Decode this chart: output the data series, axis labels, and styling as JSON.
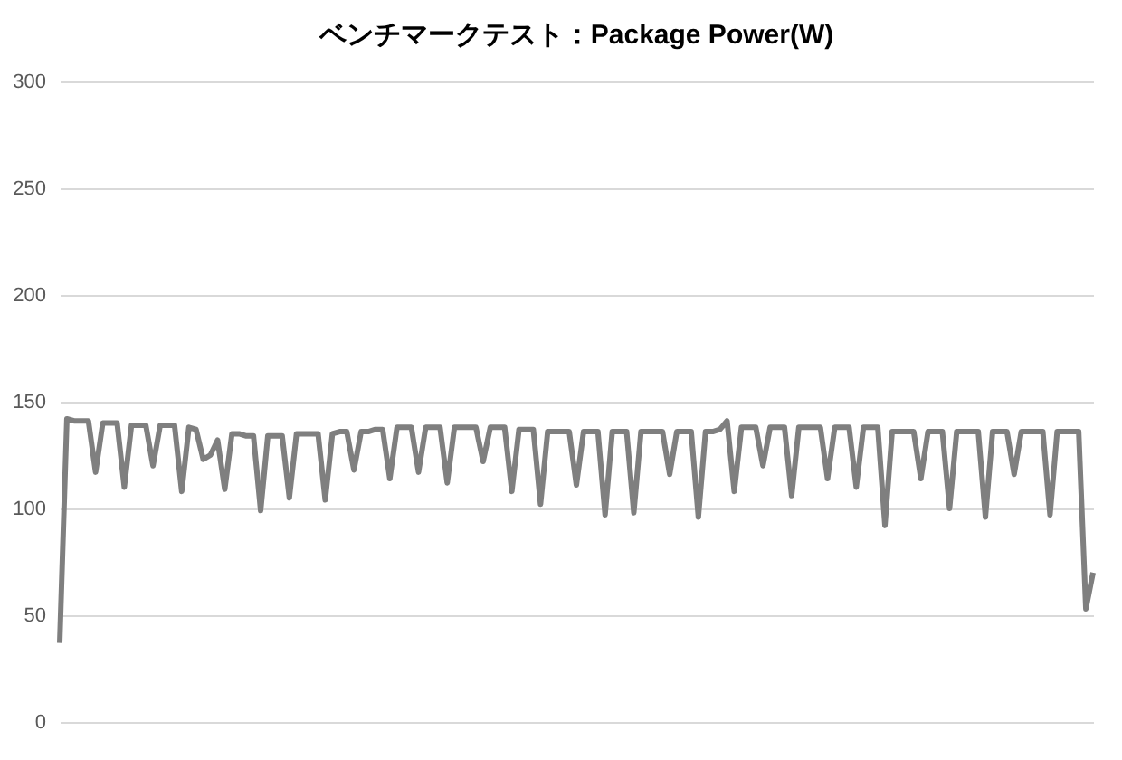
{
  "chart_data": {
    "type": "line",
    "title": "ベンチマークテスト：Package Power(W)",
    "categories": [
      null,
      null,
      null,
      null,
      null,
      null,
      null,
      null,
      null,
      null,
      null,
      null,
      null,
      null,
      null,
      null,
      null,
      null,
      null,
      null,
      null,
      null,
      null,
      null,
      null,
      null,
      null,
      null,
      null,
      null,
      null,
      null,
      null,
      null,
      null,
      null,
      null,
      null,
      null,
      null,
      null,
      null,
      null,
      null,
      null,
      null,
      null,
      null,
      null,
      null,
      null,
      null,
      null,
      null,
      null,
      null,
      null,
      null,
      null,
      null,
      null,
      null,
      null,
      null,
      null,
      null,
      null,
      null,
      null,
      null,
      null,
      null,
      null,
      null,
      null,
      null,
      null,
      null,
      null,
      null,
      null,
      null,
      null,
      null,
      null,
      null,
      null,
      null,
      null,
      null,
      null,
      null,
      null,
      null,
      null,
      null,
      null,
      null,
      null,
      null,
      null,
      null,
      null,
      null,
      null,
      null,
      null,
      null,
      null,
      null,
      null,
      null,
      null,
      null,
      null,
      null,
      null,
      null,
      null,
      null,
      null,
      null,
      null,
      null,
      null,
      null,
      null,
      null,
      null,
      null,
      null,
      null,
      null,
      null,
      null,
      null,
      null,
      null,
      null,
      null,
      null,
      null,
      null,
      null,
      null
    ],
    "values": [
      37,
      142,
      141,
      141,
      141,
      117,
      140,
      140,
      140,
      110,
      139,
      139,
      139,
      120,
      139,
      139,
      139,
      108,
      138,
      137,
      123,
      125,
      132,
      109,
      135,
      135,
      134,
      134,
      99,
      134,
      134,
      134,
      105,
      135,
      135,
      135,
      135,
      104,
      135,
      136,
      136,
      118,
      136,
      136,
      137,
      137,
      114,
      138,
      138,
      138,
      117,
      138,
      138,
      138,
      112,
      138,
      138,
      138,
      138,
      122,
      138,
      138,
      138,
      108,
      137,
      137,
      137,
      102,
      136,
      136,
      136,
      136,
      111,
      136,
      136,
      136,
      97,
      136,
      136,
      136,
      98,
      136,
      136,
      136,
      136,
      116,
      136,
      136,
      136,
      96,
      136,
      136,
      137,
      141,
      108,
      138,
      138,
      138,
      120,
      138,
      138,
      138,
      106,
      138,
      138,
      138,
      138,
      114,
      138,
      138,
      138,
      110,
      138,
      138,
      138,
      92,
      136,
      136,
      136,
      136,
      114,
      136,
      136,
      136,
      100,
      136,
      136,
      136,
      136,
      96,
      136,
      136,
      136,
      116,
      136,
      136,
      136,
      136,
      97,
      136,
      136,
      136,
      136,
      53,
      70
    ],
    "color": "#7f7f7f",
    "ylim": [
      0,
      300
    ],
    "yticks": [
      0,
      50,
      100,
      150,
      200,
      250,
      300
    ],
    "grid": "y",
    "tick_labels": "y"
  }
}
